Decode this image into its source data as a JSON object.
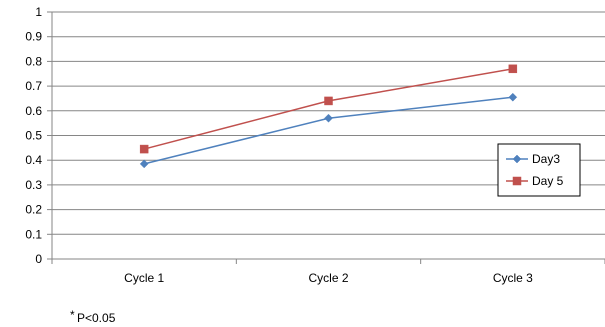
{
  "chart_data": {
    "type": "line",
    "title": "",
    "xlabel": "",
    "ylabel": "",
    "categories": [
      "Cycle 1",
      "Cycle 2",
      "Cycle 3"
    ],
    "ylim": [
      0,
      1
    ],
    "yticks": [
      "0",
      "0.1",
      "0.2",
      "0.3",
      "0.4",
      "0.5",
      "0.6",
      "0.7",
      "0.8",
      "0.9",
      "1"
    ],
    "grid": true,
    "legend_position": "right",
    "series": [
      {
        "name": "Day3",
        "values": [
          0.385,
          0.57,
          0.655
        ],
        "color": "#4F81BD",
        "marker": "diamond"
      },
      {
        "name": "Day 5",
        "values": [
          0.445,
          0.64,
          0.77
        ],
        "color": "#C0504D",
        "marker": "square"
      }
    ]
  },
  "footnote": {
    "symbol": "*",
    "text": "P<0.05"
  }
}
